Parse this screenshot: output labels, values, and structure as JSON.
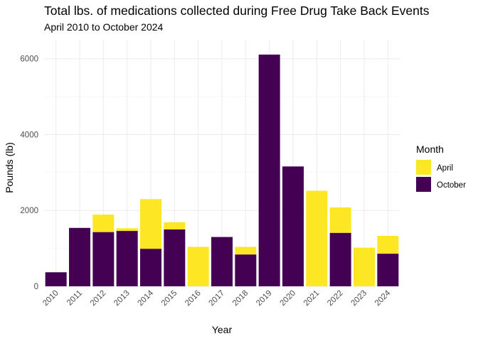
{
  "chart_data": {
    "type": "bar",
    "stacked": true,
    "title": "Total lbs. of medications collected during Free Drug Take Back Events",
    "subtitle": "April 2010 to October 2024",
    "xlabel": "Year",
    "ylabel": "Pounds (lb)",
    "ylim": [
      0,
      6500
    ],
    "yticks": [
      0,
      2000,
      4000,
      6000
    ],
    "grid": true,
    "legend": {
      "title": "Month",
      "placement": "right"
    },
    "categories": [
      "2010",
      "2011",
      "2012",
      "2013",
      "2014",
      "2015",
      "2016",
      "2017",
      "2018",
      "2019",
      "2020",
      "2021",
      "2022",
      "2023",
      "2024"
    ],
    "series": [
      {
        "name": "October",
        "color": "#440154",
        "values": [
          370,
          1540,
          1430,
          1460,
          990,
          1500,
          0,
          1300,
          840,
          6110,
          3160,
          0,
          1410,
          0,
          860
        ]
      },
      {
        "name": "April",
        "color": "#FDE725",
        "values": [
          0,
          0,
          460,
          70,
          1310,
          190,
          1040,
          0,
          200,
          0,
          0,
          2520,
          670,
          1020,
          470
        ]
      }
    ]
  }
}
